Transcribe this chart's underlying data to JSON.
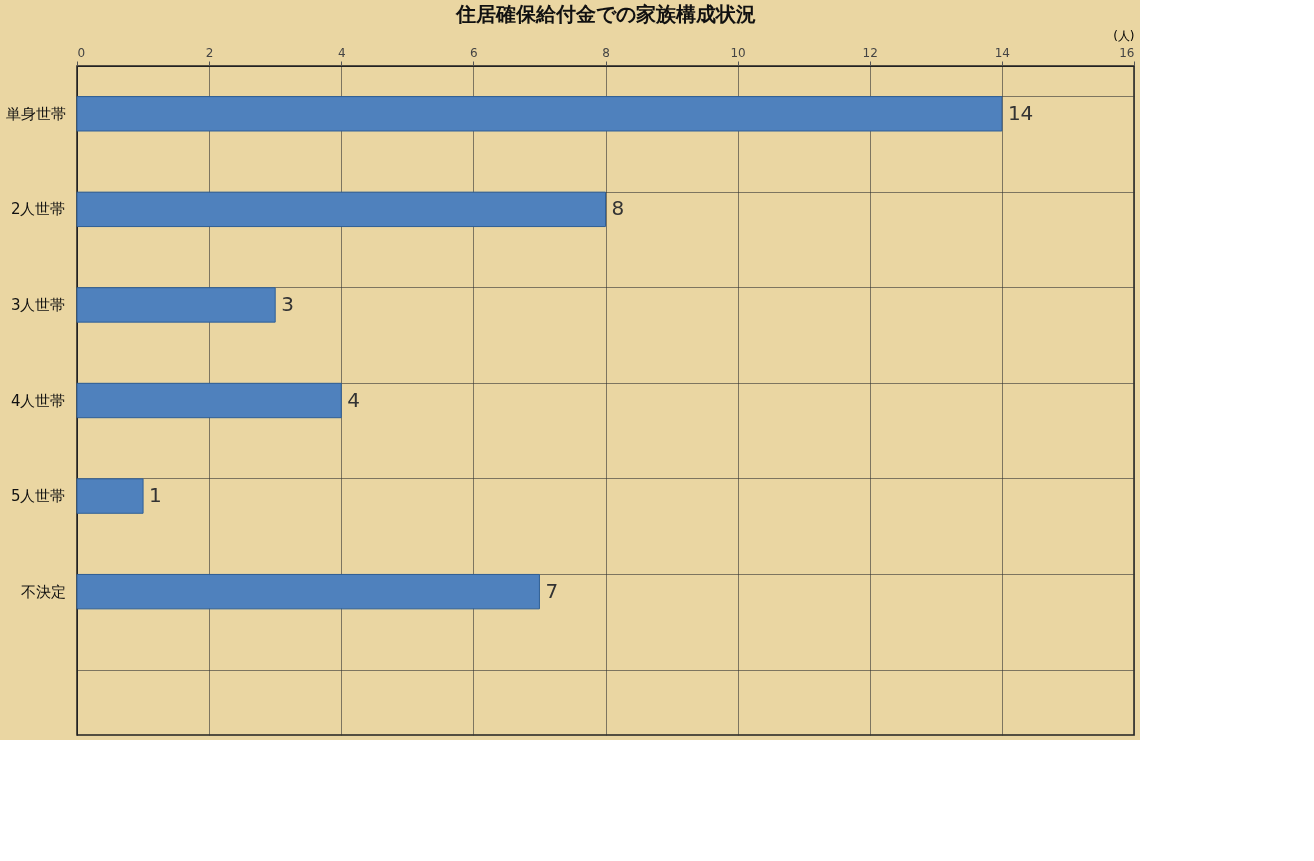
{
  "chart_data": {
    "type": "bar",
    "orientation": "horizontal",
    "title": "住居確保給付金での家族構成状況",
    "xlabel": "(人)",
    "categories": [
      "単身世帯",
      "2人世帯",
      "3人世帯",
      "4人世帯",
      "5人世帯",
      "不決定",
      null
    ],
    "values": [
      14,
      8,
      3,
      4,
      1,
      7,
      null
    ],
    "color": "#4f81bd",
    "xlim": [
      0,
      16
    ],
    "xticks": [
      0,
      2,
      4,
      6,
      8,
      10,
      12,
      14,
      16
    ],
    "grid": true,
    "data_labels": true
  }
}
